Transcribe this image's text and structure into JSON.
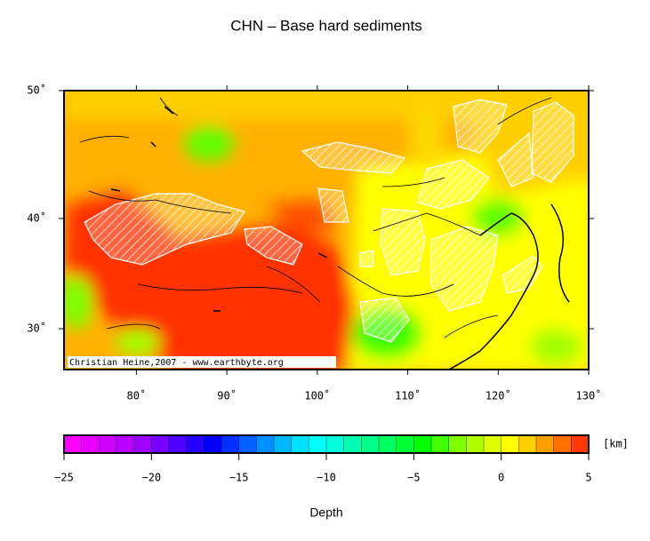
{
  "title": "CHN – Base hard sediments",
  "map": {
    "lonlim": [
      72,
      130
    ],
    "latlim": [
      26,
      50
    ],
    "lonticks": [
      {
        "value": 80,
        "label": "80˚"
      },
      {
        "value": 90,
        "label": "90˚"
      },
      {
        "value": 100,
        "label": "100˚"
      },
      {
        "value": 110,
        "label": "110˚"
      },
      {
        "value": 120,
        "label": "120˚"
      },
      {
        "value": 130,
        "label": "130˚"
      }
    ],
    "latticks": [
      {
        "value": 30,
        "label": "30˚"
      },
      {
        "value": 40,
        "label": "40˚"
      },
      {
        "value": 50,
        "label": "50˚"
      }
    ],
    "credit": "Christian Heine,2007 - www.earthbyte.org"
  },
  "colorbar": {
    "range": [
      -25,
      5
    ],
    "ticks": [
      {
        "value": -25,
        "label": "−25"
      },
      {
        "value": -20,
        "label": "−20"
      },
      {
        "value": -15,
        "label": "−15"
      },
      {
        "value": -10,
        "label": "−10"
      },
      {
        "value": -5,
        "label": "−5"
      },
      0,
      5
    ],
    "colors": [
      "#ff00ff",
      "#e800ff",
      "#d000ff",
      "#b800ff",
      "#a000ff",
      "#7800ff",
      "#5000ff",
      "#2800ff",
      "#0000ff",
      "#0030ff",
      "#0060ff",
      "#0090ff",
      "#00b8ff",
      "#00e0ff",
      "#00ffff",
      "#00ffd8",
      "#00ffb0",
      "#00ff88",
      "#00ff60",
      "#00ff30",
      "#00ff00",
      "#40ff00",
      "#80ff00",
      "#b0ff00",
      "#e0ff00",
      "#ffff00",
      "#ffd000",
      "#ffa000",
      "#ff7000",
      "#ff3800"
    ],
    "unit": "[km]",
    "label": "Depth"
  }
}
